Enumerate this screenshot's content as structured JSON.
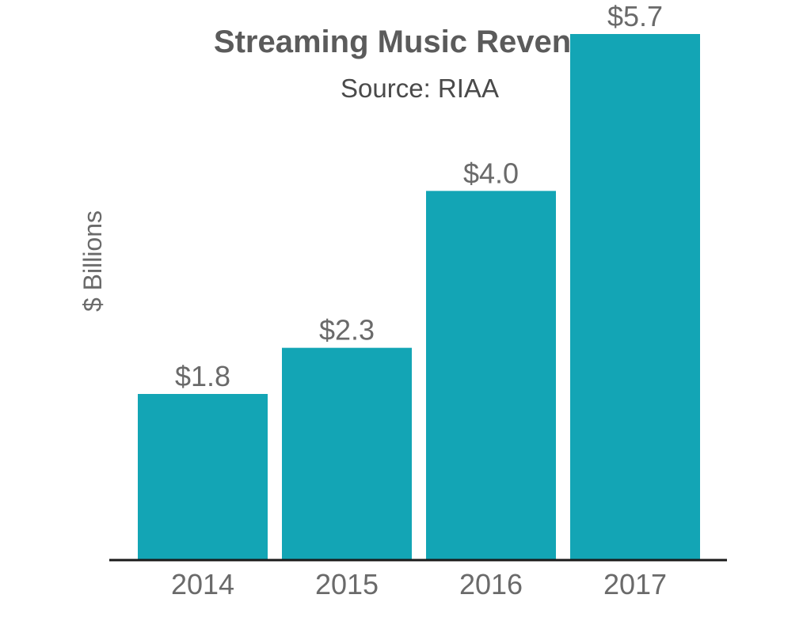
{
  "chart_data": {
    "type": "bar",
    "title": "Streaming Music Revenues",
    "subtitle": "Source: RIAA",
    "xlabel": "",
    "ylabel": "$ Billions",
    "categories": [
      "2014",
      "2015",
      "2016",
      "2017"
    ],
    "values": [
      1.8,
      2.3,
      4.0,
      5.7
    ],
    "data_labels": [
      "$1.8",
      "$2.3",
      "$4.0",
      "$5.7"
    ],
    "ylim": [
      0,
      6
    ],
    "grid": false,
    "legend": "none",
    "colors": {
      "bar": "#13a5b5",
      "axis": "#1a1a1a",
      "text": "#6a6a6a",
      "title": "#5b5b5b"
    }
  }
}
